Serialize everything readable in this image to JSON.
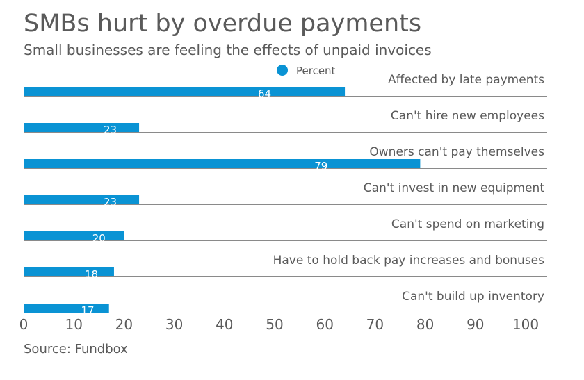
{
  "title": "SMBs hurt by overdue payments",
  "subtitle": "Small businesses are feeling the effects of unpaid invoices",
  "source": "Source: Fundbox",
  "colors": {
    "bar": "#0a93d4",
    "text": "#5a5a5a",
    "grid": "#8a8a8a"
  },
  "chart_data": {
    "type": "bar",
    "orientation": "horizontal",
    "categories": [
      "Affected by late payments",
      "Can't hire new employees",
      "Owners can't pay themselves",
      "Can't invest in new equipment",
      "Can't spend on marketing",
      "Have to hold back pay increases and bonuses",
      "Can't build up inventory"
    ],
    "series": [
      {
        "name": "Percent",
        "values": [
          64,
          23,
          79,
          23,
          20,
          18,
          17
        ]
      }
    ],
    "xlim": [
      0,
      100
    ],
    "xticks": [
      0,
      10,
      20,
      30,
      40,
      50,
      60,
      70,
      80,
      90,
      100
    ],
    "legend": "top-center",
    "data_labels": true,
    "grid": false
  }
}
